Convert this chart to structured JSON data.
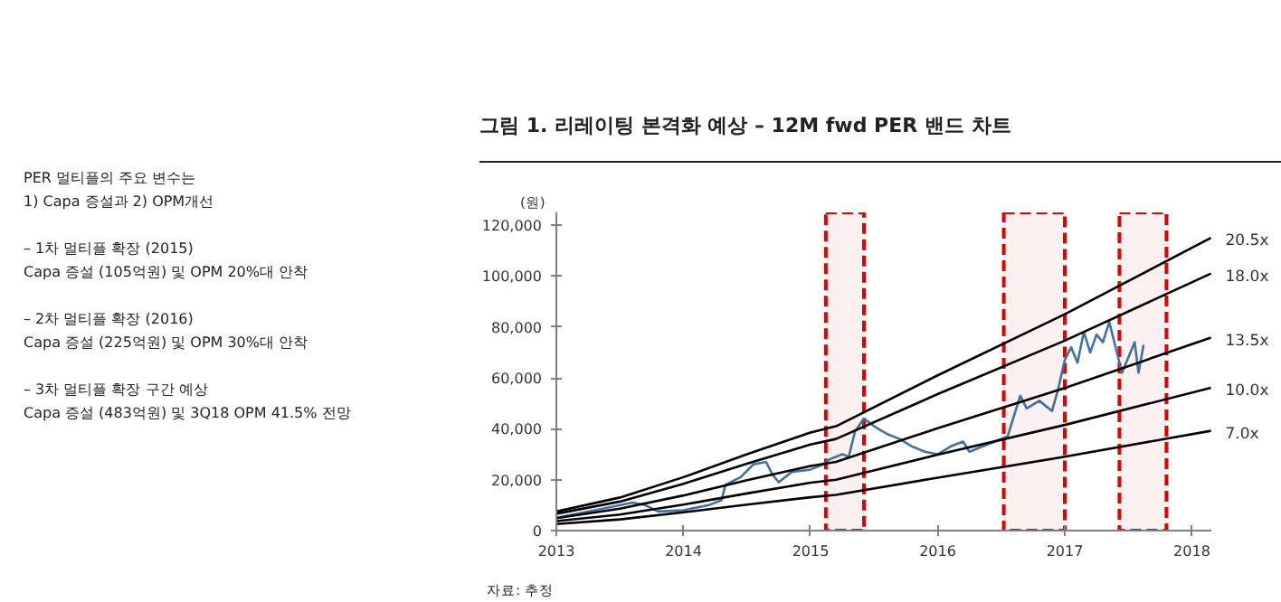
{
  "chart_data": {
    "type": "line",
    "title": "그림 1. 리레이팅 본격화 예상 – 12M fwd PER 밴드 차트",
    "ylabel": "(원)",
    "annotations": [
      "PER 멀티플의 주요 변수는",
      "1) Capa 증설과 2) OPM개선",
      "– 1차 멀티플 확장 (2015)",
      "Capa 증설 (105억원) 및 OPM 20%대 안착",
      "– 2차 멀티플 확장 (2016)",
      "Capa 증설 (225억원) 및 OPM 30%대 안착",
      "– 3차 멀티플 확장 구간 예상",
      "Capa 증설 (483억원) 및 3Q18 OPM 41.5% 전망",
      "자료: 추정"
    ],
    "xlim": [
      2013,
      2018.15
    ],
    "xticks": [
      2013,
      2014,
      2015,
      2016,
      2017,
      2018
    ],
    "ylim": [
      0,
      125000
    ],
    "yticks": [
      {
        "value": 0,
        "label": "0"
      },
      {
        "value": 20000,
        "label": "20,000"
      },
      {
        "value": 40000,
        "label": "40,000"
      },
      {
        "value": 60000,
        "label": "60,000"
      },
      {
        "value": 80000,
        "label": "80,000"
      },
      {
        "value": 100000,
        "label": "100,000"
      },
      {
        "value": 120000,
        "label": "120,000"
      }
    ],
    "grid": false,
    "series": [
      {
        "color": "#41719c",
        "x": [
          2013.0,
          2013.2,
          2013.4,
          2013.6,
          2013.7,
          2013.8,
          2014.0,
          2014.2,
          2014.3,
          2014.33,
          2014.45,
          2014.55,
          2014.65,
          2014.7,
          2014.75,
          2014.85,
          2015.0,
          2015.1,
          2015.15,
          2015.25,
          2015.3,
          2015.35,
          2015.42,
          2015.5,
          2015.6,
          2015.7,
          2015.8,
          2015.9,
          2016.0,
          2016.1,
          2016.2,
          2016.25,
          2016.35,
          2016.45,
          2016.55,
          2016.6,
          2016.65,
          2016.7,
          2016.8,
          2016.9,
          2016.95,
          2017.0,
          2017.05,
          2017.1,
          2017.15,
          2017.2,
          2017.25,
          2017.3,
          2017.35,
          2017.4,
          2017.45,
          2017.5,
          2017.55,
          2017.58,
          2017.62
        ],
        "values": [
          5000,
          7000,
          9000,
          11000,
          10000,
          7500,
          8000,
          10000,
          12000,
          18000,
          21000,
          26000,
          27000,
          22000,
          19000,
          23000,
          24000,
          26000,
          28000,
          30000,
          29000,
          39000,
          44000,
          41000,
          38000,
          36000,
          33000,
          31000,
          30000,
          33000,
          35000,
          31000,
          33000,
          35000,
          37000,
          45000,
          53000,
          48000,
          51000,
          47000,
          56000,
          67000,
          72000,
          66000,
          78000,
          70000,
          77000,
          74000,
          82000,
          72000,
          62000,
          68000,
          74000,
          62000,
          73000
        ]
      },
      {
        "name": "20.5x",
        "color": "#000000",
        "x": [
          2013,
          2013.5,
          2014,
          2014.5,
          2015,
          2015.2,
          2016,
          2017,
          2018.15
        ],
        "values": [
          7500,
          13000,
          21000,
          30000,
          38500,
          41000,
          61000,
          85000,
          115000
        ]
      },
      {
        "name": "18.0x",
        "color": "#000000",
        "x": [
          2013,
          2013.5,
          2014,
          2014.5,
          2015,
          2015.2,
          2016,
          2017,
          2018.15
        ],
        "values": [
          6600,
          11400,
          18400,
          26300,
          33800,
          36000,
          53600,
          74600,
          101000
        ]
      },
      {
        "name": "13.5x",
        "color": "#000000",
        "x": [
          2013,
          2013.5,
          2014,
          2014.5,
          2015,
          2015.2,
          2016,
          2017,
          2018.15
        ],
        "values": [
          4900,
          8600,
          13800,
          19800,
          25400,
          27000,
          40200,
          56000,
          75800
        ]
      },
      {
        "name": "10.0x",
        "color": "#000000",
        "x": [
          2013,
          2013.5,
          2014,
          2014.5,
          2015,
          2015.2,
          2016,
          2017,
          2018.15
        ],
        "values": [
          3700,
          6300,
          10200,
          14600,
          18800,
          20000,
          29800,
          41500,
          56100
        ]
      },
      {
        "name": "7.0x",
        "color": "#000000",
        "x": [
          2013,
          2013.5,
          2014,
          2014.5,
          2015,
          2015.2,
          2016,
          2017,
          2018.15
        ],
        "values": [
          2600,
          4400,
          7200,
          10200,
          13100,
          14000,
          20800,
          29000,
          39200
        ]
      }
    ],
    "bands": [
      {
        "axis": "x",
        "from": 2015.12,
        "to": 2015.42,
        "color": "#e00000"
      },
      {
        "axis": "x",
        "from": 2016.52,
        "to": 2017.0,
        "color": "#e00000"
      },
      {
        "axis": "x",
        "from": 2017.43,
        "to": 2017.8,
        "color": "#e00000"
      }
    ]
  }
}
